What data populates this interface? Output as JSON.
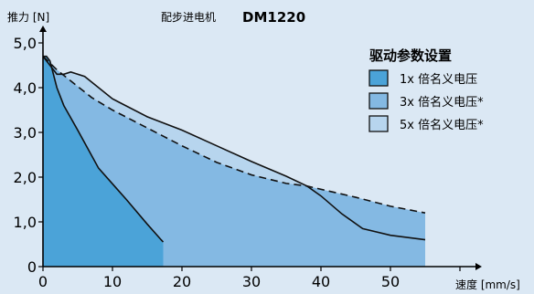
{
  "chart_data": {
    "type": "area",
    "title_prefix": "配步进电机",
    "title_model": "DM1220",
    "ylabel": "推力 [N]",
    "xlabel": "速度 [mm/s]",
    "xlim": [
      0,
      60
    ],
    "ylim": [
      0,
      5.0
    ],
    "x_ticks": [
      "0",
      "10",
      "20",
      "30",
      "40",
      "50"
    ],
    "y_ticks": [
      "0",
      "1,0",
      "2,0",
      "3,0",
      "4,0",
      "5,0"
    ],
    "legend_title": "驱动参数设置",
    "legend_position": "top-right",
    "grid": false,
    "series": [
      {
        "name": "1x 倍名义电压",
        "fill": "#4ba3d8",
        "dashed": false,
        "points": [
          [
            0,
            4.7
          ],
          [
            0.5,
            4.7
          ],
          [
            1,
            4.6
          ],
          [
            2,
            4.0
          ],
          [
            3,
            3.6
          ],
          [
            5,
            3.05
          ],
          [
            8,
            2.2
          ],
          [
            12,
            1.5
          ],
          [
            15,
            0.95
          ],
          [
            17,
            0.6
          ],
          [
            17.3,
            0.55
          ]
        ]
      },
      {
        "name": "3x 倍名义电压*",
        "fill": "#84b9e3",
        "dashed": true,
        "points": [
          [
            0,
            4.7
          ],
          [
            1,
            4.55
          ],
          [
            2,
            4.4
          ],
          [
            4,
            4.15
          ],
          [
            7,
            3.78
          ],
          [
            10,
            3.5
          ],
          [
            15,
            3.1
          ],
          [
            20,
            2.7
          ],
          [
            25,
            2.33
          ],
          [
            30,
            2.05
          ],
          [
            35,
            1.86
          ],
          [
            38,
            1.8
          ],
          [
            45,
            1.55
          ],
          [
            50,
            1.35
          ],
          [
            55,
            1.2
          ]
        ]
      },
      {
        "name": "5x 倍名义电压*",
        "fill": "#b7d5ee",
        "dashed": false,
        "points": [
          [
            0,
            4.7
          ],
          [
            1,
            4.5
          ],
          [
            2,
            4.3
          ],
          [
            3,
            4.3
          ],
          [
            4,
            4.35
          ],
          [
            6,
            4.25
          ],
          [
            10,
            3.75
          ],
          [
            15,
            3.35
          ],
          [
            20,
            3.05
          ],
          [
            25,
            2.7
          ],
          [
            30,
            2.35
          ],
          [
            35,
            2.02
          ],
          [
            38,
            1.8
          ],
          [
            40,
            1.58
          ],
          [
            43,
            1.18
          ],
          [
            46,
            0.85
          ],
          [
            50,
            0.7
          ],
          [
            55,
            0.6
          ]
        ]
      }
    ]
  }
}
